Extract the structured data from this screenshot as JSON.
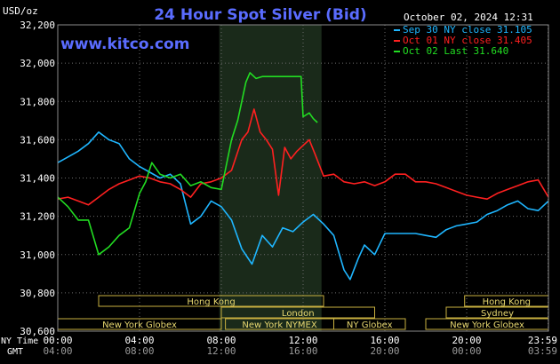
{
  "chart_data": {
    "type": "line",
    "title": "24 Hour Spot Silver (Bid)",
    "website": "www.kitco.com",
    "date_label": "October 02, 2024 12:31",
    "ylabel": "USD/oz",
    "ylim": [
      30600,
      32200
    ],
    "yticks": [
      "32,200",
      "32,000",
      "31,800",
      "31,600",
      "31,400",
      "31,200",
      "31,000",
      "30,800",
      "30,600"
    ],
    "ytick_values": [
      32200,
      32000,
      31800,
      31600,
      31400,
      31200,
      31000,
      30800,
      30600
    ],
    "xlim": [
      0,
      24
    ],
    "time_axis": {
      "ny_label": "NY Time",
      "gmt_label": "GMT",
      "ny_ticks": [
        "00:00",
        "04:00",
        "08:00",
        "12:00",
        "16:00",
        "20:00",
        "23:59"
      ],
      "gmt_ticks": [
        "04:00",
        "08:00",
        "12:00",
        "16:00",
        "20:00",
        "00:00",
        "03:59"
      ],
      "tick_hours": [
        0,
        4,
        8,
        12,
        16,
        20,
        23.98
      ]
    },
    "highlight_range": [
      7.9,
      12.9
    ],
    "sessions": [
      {
        "name": "Hong Kong",
        "start": 2.0,
        "end": 13.0,
        "row": 0
      },
      {
        "name": "Hong Kong",
        "start": 19.9,
        "end": 24.0,
        "row": 0
      },
      {
        "name": "London",
        "start": 8.0,
        "end": 15.5,
        "row": 1
      },
      {
        "name": "Sydney",
        "start": 19.0,
        "end": 24.0,
        "row": 1
      },
      {
        "name": "New York Globex",
        "start": 0.0,
        "end": 8.0,
        "row": 2
      },
      {
        "name": "New York NYMEX",
        "start": 8.2,
        "end": 13.5,
        "row": 2
      },
      {
        "name": "NY Globex",
        "start": 13.5,
        "end": 17.0,
        "row": 2
      },
      {
        "name": "New York Globex",
        "start": 18.0,
        "end": 24.0,
        "row": 2
      }
    ],
    "series": [
      {
        "name": "Sep 30 NY close 31.105",
        "color": "#1fb6ff",
        "x": [
          0,
          0.5,
          1.0,
          1.5,
          2.0,
          2.5,
          3.0,
          3.5,
          4.0,
          4.5,
          5.0,
          5.5,
          6.0,
          6.5,
          7.0,
          7.5,
          8.0,
          8.5,
          9.0,
          9.5,
          10.0,
          10.5,
          11.0,
          11.5,
          12.0,
          12.5,
          13.0,
          13.5,
          14.0,
          14.3,
          14.7,
          15.0,
          15.5,
          16.0,
          16.5,
          17.0,
          17.5,
          18.0,
          18.5,
          19.0,
          19.5,
          20.0,
          20.5,
          21.0,
          21.5,
          22.0,
          22.5,
          23.0,
          23.5,
          24.0
        ],
        "y": [
          31480,
          31510,
          31540,
          31580,
          31640,
          31600,
          31580,
          31500,
          31460,
          31430,
          31400,
          31420,
          31370,
          31160,
          31200,
          31280,
          31250,
          31180,
          31030,
          30950,
          31100,
          31040,
          31140,
          31120,
          31170,
          31210,
          31160,
          31100,
          30920,
          30870,
          30980,
          31050,
          31000,
          31110,
          31110,
          31110,
          31110,
          31100,
          31090,
          31130,
          31150,
          31160,
          31170,
          31210,
          31230,
          31260,
          31280,
          31240,
          31230,
          31280
        ]
      },
      {
        "name": "Oct 01 NY close 31.405",
        "color": "#ff2020",
        "x": [
          0,
          0.5,
          1.0,
          1.5,
          2.0,
          2.5,
          3.0,
          3.5,
          4.0,
          4.5,
          5.0,
          5.5,
          6.0,
          6.5,
          7.0,
          7.5,
          8.0,
          8.5,
          9.0,
          9.3,
          9.6,
          9.9,
          10.2,
          10.5,
          10.8,
          11.1,
          11.4,
          11.7,
          12.0,
          12.3,
          12.6,
          13.0,
          13.5,
          14.0,
          14.5,
          15.0,
          15.5,
          16.0,
          16.5,
          17.0,
          17.5,
          18.0,
          18.5,
          19.0,
          19.5,
          20.0,
          20.5,
          21.0,
          21.5,
          22.0,
          22.5,
          23.0,
          23.5,
          24.0
        ],
        "y": [
          31290,
          31300,
          31280,
          31260,
          31300,
          31340,
          31370,
          31390,
          31410,
          31400,
          31380,
          31370,
          31340,
          31300,
          31370,
          31380,
          31400,
          31440,
          31600,
          31640,
          31760,
          31640,
          31600,
          31550,
          31310,
          31560,
          31500,
          31540,
          31570,
          31600,
          31520,
          31410,
          31420,
          31380,
          31370,
          31380,
          31360,
          31380,
          31420,
          31420,
          31380,
          31380,
          31370,
          31350,
          31330,
          31310,
          31300,
          31290,
          31320,
          31340,
          31360,
          31380,
          31390,
          31300
        ]
      },
      {
        "name": "Oct 02 Last 31.640",
        "color": "#22dd22",
        "x": [
          0,
          0.5,
          1.0,
          1.5,
          2.0,
          2.5,
          3.0,
          3.5,
          4.0,
          4.3,
          4.6,
          5.0,
          5.5,
          6.0,
          6.5,
          7.0,
          7.5,
          8.0,
          8.5,
          8.8,
          9.0,
          9.2,
          9.4,
          9.7,
          10.0,
          10.5,
          11.0,
          11.5,
          11.9,
          12.0,
          12.3,
          12.5,
          12.7
        ],
        "y": [
          31300,
          31250,
          31180,
          31180,
          31000,
          31040,
          31100,
          31140,
          31320,
          31380,
          31480,
          31420,
          31400,
          31420,
          31360,
          31380,
          31350,
          31340,
          31600,
          31700,
          31800,
          31900,
          31950,
          31920,
          31930,
          31930,
          31930,
          31930,
          31930,
          31720,
          31740,
          31710,
          31690
        ]
      }
    ]
  }
}
